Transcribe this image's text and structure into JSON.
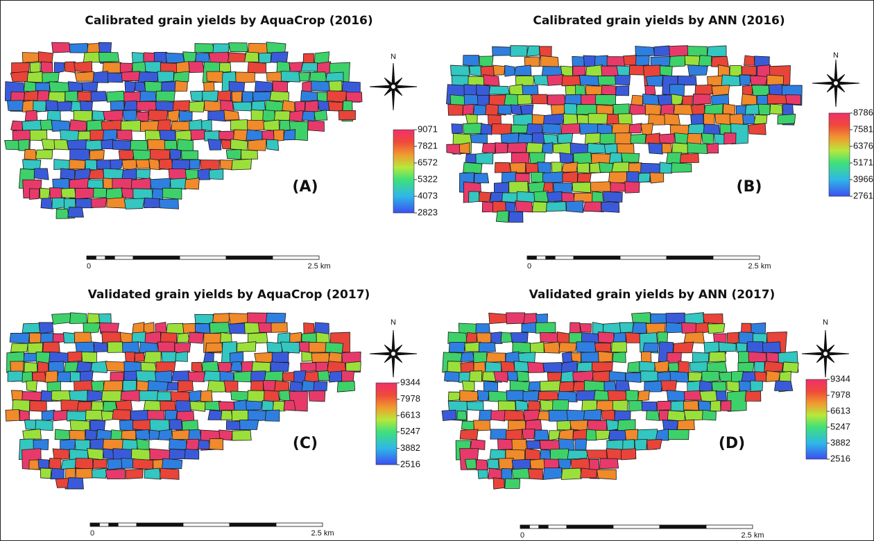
{
  "panels": [
    {
      "title": "Calibrated grain yields by AquaCrop (2016)",
      "label": "(A)",
      "north": "N",
      "legend": [
        2823,
        4073,
        5322,
        6572,
        7821,
        9071
      ],
      "scale": [
        "0",
        "2.5 km"
      ]
    },
    {
      "title": "Calibrated grain yields by ANN (2016)",
      "label": "(B)",
      "north": "N",
      "legend": [
        2761,
        3966,
        5171,
        6376,
        7581,
        8786
      ],
      "scale": [
        "0",
        "2.5 km"
      ]
    },
    {
      "title": "Validated grain yields by AquaCrop (2017)",
      "label": "(C)",
      "north": "N",
      "legend": [
        2516,
        3882,
        5247,
        6613,
        7978,
        9344
      ],
      "scale": [
        "0",
        "2.5 km"
      ]
    },
    {
      "title": "Validated grain yields by ANN (2017)",
      "label": "(D)",
      "north": "N",
      "legend": [
        2516,
        3882,
        5247,
        6613,
        7978,
        9344
      ],
      "scale": [
        "0",
        "2.5 km"
      ]
    }
  ]
}
